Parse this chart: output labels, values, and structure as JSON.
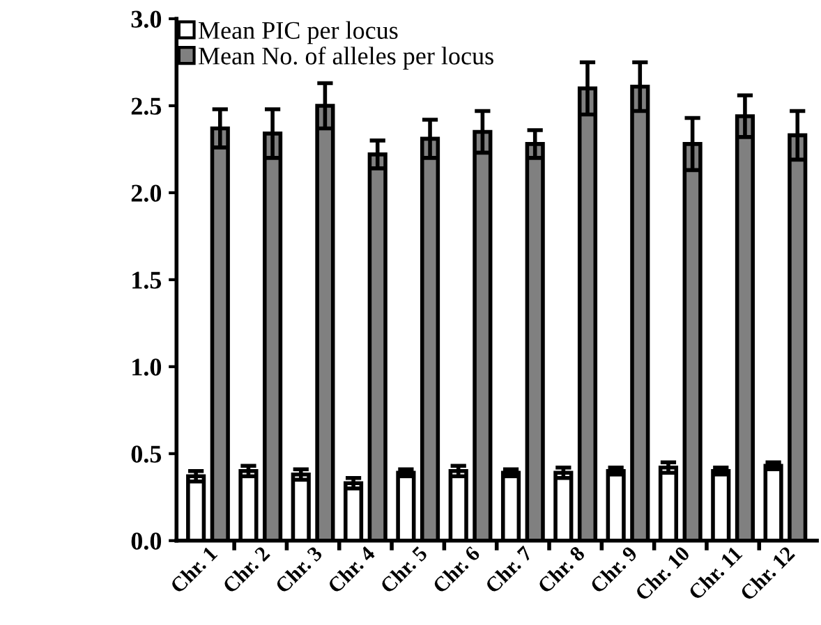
{
  "chart_data": {
    "type": "bar",
    "categories": [
      "Chr. 1",
      "Chr. 2",
      "Chr. 3",
      "Chr. 4",
      "Chr. 5",
      "Chr. 6",
      "Chr. 7",
      "Chr. 8",
      "Chr. 9",
      "Chr. 10",
      "Chr. 11",
      "Chr. 12"
    ],
    "series": [
      {
        "name": "Mean PIC per locus",
        "color": "#ffffff",
        "values": [
          0.37,
          0.4,
          0.38,
          0.33,
          0.39,
          0.4,
          0.39,
          0.39,
          0.4,
          0.42,
          0.4,
          0.43
        ],
        "errors": [
          0.03,
          0.03,
          0.03,
          0.03,
          0.02,
          0.03,
          0.02,
          0.03,
          0.02,
          0.03,
          0.02,
          0.02
        ]
      },
      {
        "name": "Mean No. of alleles per locus",
        "color": "#808080",
        "values": [
          2.37,
          2.34,
          2.5,
          2.22,
          2.31,
          2.35,
          2.28,
          2.6,
          2.61,
          2.28,
          2.44,
          2.33
        ],
        "errors": [
          0.11,
          0.14,
          0.13,
          0.08,
          0.11,
          0.12,
          0.08,
          0.15,
          0.14,
          0.15,
          0.12,
          0.14
        ]
      }
    ],
    "ylim": [
      0,
      3.0
    ],
    "yticks": [
      {
        "value": 0,
        "label": "0.0"
      },
      {
        "value": 0.5,
        "label": "0.5"
      },
      {
        "value": 1.0,
        "label": "1.0"
      },
      {
        "value": 1.5,
        "label": "1.5"
      },
      {
        "value": 2.0,
        "label": "2.0"
      },
      {
        "value": 2.5,
        "label": "2.5"
      },
      {
        "value": 3.0,
        "label": "3.0"
      }
    ],
    "legend": "top left",
    "grid": false
  }
}
